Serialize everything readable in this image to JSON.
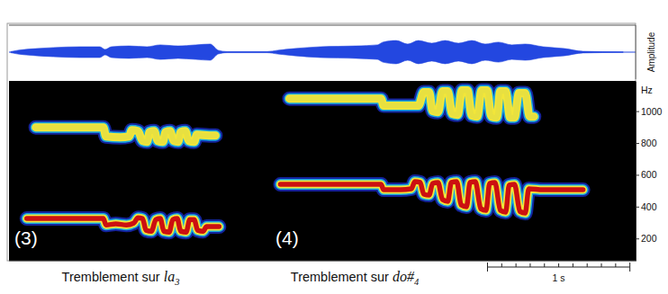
{
  "chart_data": [
    {
      "type": "area",
      "ylabel": "Amplitude",
      "xlim": [
        0,
        4.4
      ],
      "ylim": [
        -1,
        1
      ],
      "tick_labels": false,
      "grid": false,
      "color": "#2347e0",
      "x": [
        0.0125,
        0.0625,
        0.1875,
        0.3125,
        0.5,
        0.6375,
        0.675,
        0.719,
        0.844,
        0.969,
        1.0625,
        1.1875,
        1.3125,
        1.4125,
        1.469,
        1.531,
        1.8125,
        1.8875,
        2.0,
        2.1875,
        2.4375,
        2.5875,
        2.625,
        2.719,
        2.8,
        2.875,
        2.969,
        3.0625,
        3.156,
        3.25,
        3.344,
        3.4375,
        3.531,
        3.625,
        3.75,
        3.906,
        4.031,
        4.3125
      ],
      "values": [
        0.02,
        0.07,
        0.13,
        0.17,
        0.2,
        0.2,
        0.1,
        0.2,
        0.23,
        0.2,
        0.27,
        0.23,
        0.27,
        0.3,
        0.07,
        0.02,
        0.02,
        0.07,
        0.13,
        0.2,
        0.23,
        0.27,
        0.37,
        0.43,
        0.3,
        0.43,
        0.33,
        0.43,
        0.33,
        0.43,
        0.3,
        0.37,
        0.27,
        0.3,
        0.2,
        0.13,
        0.03,
        0.01
      ]
    },
    {
      "type": "line",
      "ylabel": "Hz",
      "xlim": [
        0,
        4.4
      ],
      "ylim": [
        60,
        1190
      ],
      "yticks": [
        200,
        400,
        600,
        800,
        1000
      ],
      "tick_labels": "y",
      "grid": false,
      "series": [
        {
          "color": "#cc1010",
          "x": [
            0.125,
            0.3125,
            0.5,
            0.6625,
            0.681,
            0.75,
            0.825,
            0.875,
            0.906,
            0.9375,
            0.9625,
            1.0,
            1.031,
            1.0625,
            1.0875,
            1.125,
            1.15,
            1.181,
            1.206,
            1.244,
            1.269,
            1.3,
            1.325,
            1.3625,
            1.3875,
            1.4375,
            1.475
          ],
          "values": [
            325,
            325,
            325,
            325,
            285,
            291,
            285,
            296,
            330,
            325,
            251,
            245,
            319,
            325,
            245,
            240,
            319,
            325,
            245,
            240,
            319,
            319,
            251,
            245,
            274,
            274,
            274
          ]
        },
        {
          "color": "#e8e040",
          "x": [
            0.1875,
            0.4375,
            0.6625,
            0.681,
            0.781,
            0.844,
            0.8625,
            0.906,
            0.9375,
            0.969,
            0.9875,
            1.019,
            1.044,
            1.081,
            1.1,
            1.131,
            1.156,
            1.1875,
            1.206,
            1.2375,
            1.2625,
            1.3,
            1.319,
            1.406,
            1.45
          ],
          "values": [
            898,
            898,
            898,
            841,
            835,
            841,
            881,
            875,
            813,
            807,
            870,
            875,
            813,
            807,
            870,
            875,
            813,
            807,
            870,
            875,
            813,
            807,
            852,
            847,
            847
          ]
        },
        {
          "color": "#cc1010",
          "x": [
            1.906,
            2.1875,
            2.4375,
            2.6125,
            2.631,
            2.75,
            2.825,
            2.85,
            2.8875,
            2.9125,
            2.95,
            2.975,
            3.0125,
            3.044,
            3.081,
            3.106,
            3.144,
            3.175,
            3.2125,
            3.2375,
            3.275,
            3.3125,
            3.35,
            3.375,
            3.4125,
            3.45,
            3.4875,
            3.5125,
            3.55,
            3.5875,
            3.625,
            3.65,
            3.75,
            3.875,
            4.031
          ],
          "values": [
            540,
            540,
            540,
            540,
            506,
            506,
            512,
            557,
            552,
            478,
            472,
            546,
            552,
            444,
            433,
            552,
            557,
            410,
            399,
            552,
            557,
            387,
            376,
            546,
            552,
            376,
            365,
            535,
            540,
            370,
            359,
            512,
            506,
            506,
            506
          ]
        },
        {
          "color": "#e8e040",
          "x": [
            1.969,
            2.3125,
            2.6125,
            2.631,
            2.781,
            2.875,
            2.9125,
            2.95,
            2.975,
            3.0125,
            3.044,
            3.081,
            3.1125,
            3.15,
            3.181,
            3.219,
            3.25,
            3.2875,
            3.319,
            3.356,
            3.3875,
            3.425,
            3.45,
            3.4875,
            3.519,
            3.55,
            3.581,
            3.625,
            3.656,
            3.6875
          ],
          "values": [
            1079,
            1079,
            1079,
            1034,
            1034,
            1034,
            1119,
            1119,
            1000,
            994,
            1125,
            1125,
            983,
            977,
            1131,
            1131,
            972,
            966,
            1131,
            1131,
            966,
            960,
            1125,
            1125,
            960,
            960,
            1114,
            1114,
            966,
            966
          ]
        }
      ],
      "annotations": [
        "(3)",
        "(4)"
      ],
      "captions": [
        {
          "text": "Tremblement sur ",
          "note": "la",
          "octave": "3"
        },
        {
          "text": "Tremblement sur ",
          "note": "do#",
          "octave": "4"
        }
      ],
      "scale_bar": {
        "label": "1 s",
        "start": 3.36,
        "end": 4.36,
        "ticks": [
          3.36,
          3.46,
          3.56,
          3.66,
          3.76,
          3.86,
          3.96,
          4.06,
          4.16,
          4.26,
          4.36
        ]
      }
    }
  ]
}
